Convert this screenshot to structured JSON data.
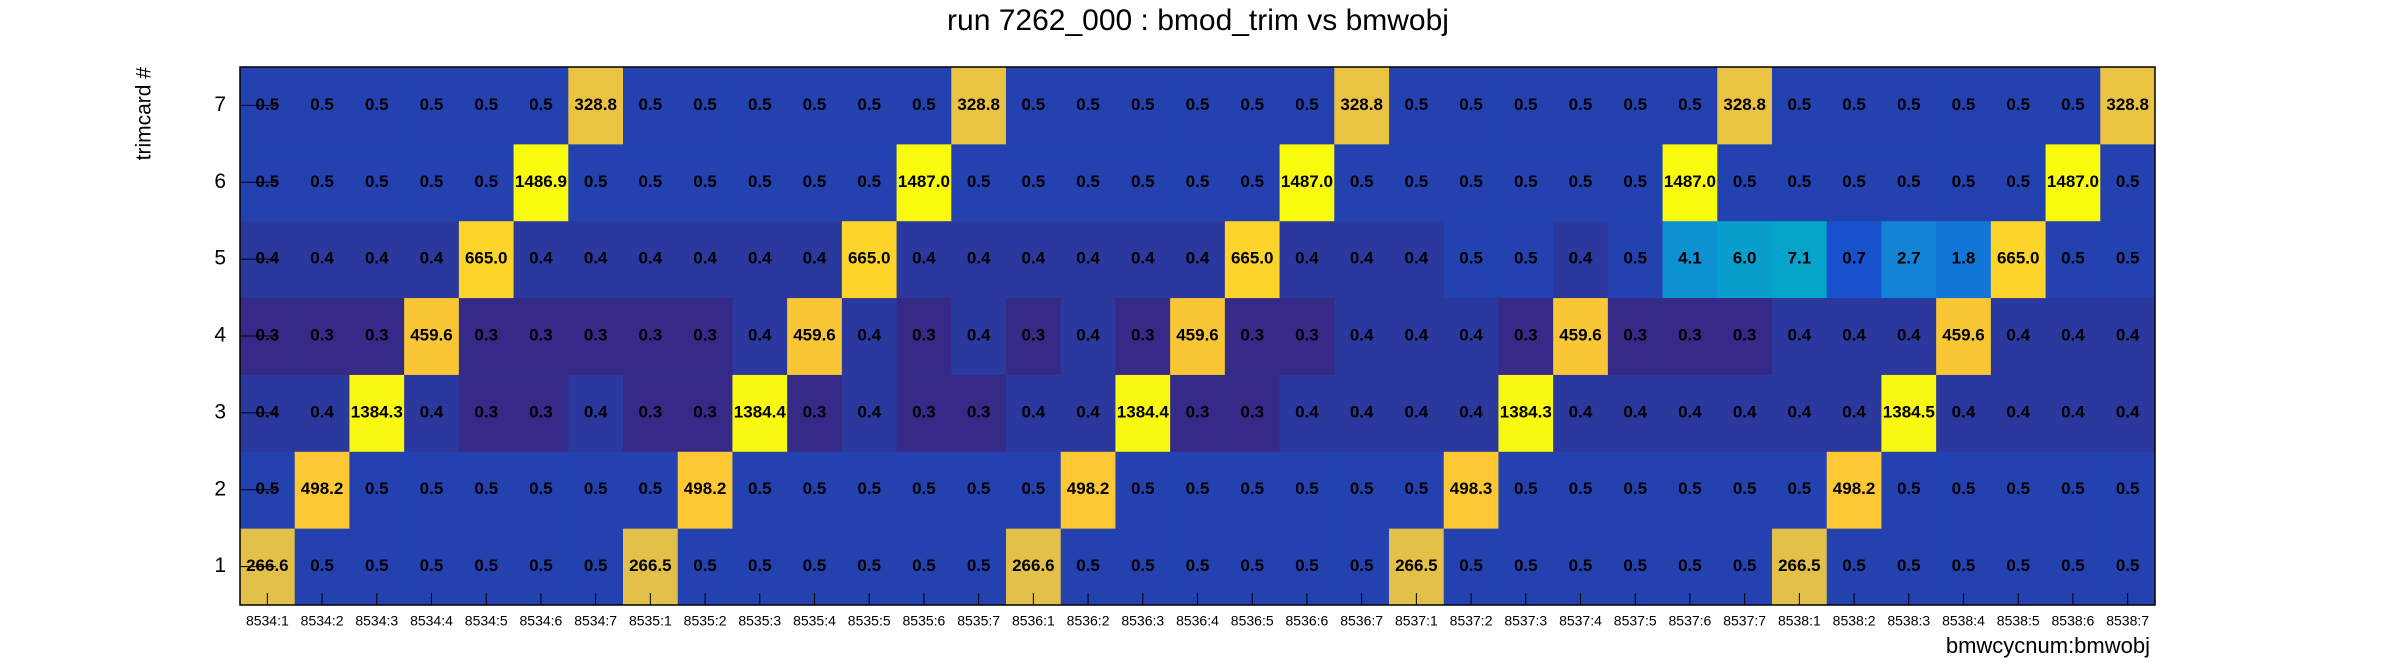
{
  "chart_data": {
    "type": "heatmap",
    "title": "run 7262_000 : bmod_trim vs bmwobj",
    "x_label": "bmwcycnum:bmwobj",
    "y_label": "trimcard #",
    "categories": [
      "8534:1",
      "8534:2",
      "8534:3",
      "8534:4",
      "8534:5",
      "8534:6",
      "8534:7",
      "8535:1",
      "8535:2",
      "8535:3",
      "8535:4",
      "8535:5",
      "8535:6",
      "8535:7",
      "8536:1",
      "8536:2",
      "8536:3",
      "8536:4",
      "8536:5",
      "8536:6",
      "8536:7",
      "8537:1",
      "8537:2",
      "8537:3",
      "8537:4",
      "8537:5",
      "8537:6",
      "8537:7",
      "8538:1",
      "8538:2",
      "8538:3",
      "8538:4",
      "8538:5",
      "8538:6",
      "8538:7"
    ],
    "y": [
      1,
      2,
      3,
      4,
      5,
      6,
      7
    ],
    "zscale": "log",
    "palette": [
      "#352a87",
      "#0f5cdd",
      "#1481d6",
      "#06a4ca",
      "#2eb7a4",
      "#87bf77",
      "#d1bb59",
      "#fec832",
      "#f9fb0e"
    ],
    "values": [
      [
        266.6,
        0.5,
        0.5,
        0.5,
        0.5,
        0.5,
        0.5,
        266.5,
        0.5,
        0.5,
        0.5,
        0.5,
        0.5,
        0.5,
        266.6,
        0.5,
        0.5,
        0.5,
        0.5,
        0.5,
        0.5,
        266.5,
        0.5,
        0.5,
        0.5,
        0.5,
        0.5,
        0.5,
        266.5,
        0.5,
        0.5,
        0.5,
        0.5,
        0.5,
        0.5
      ],
      [
        0.5,
        498.2,
        0.5,
        0.5,
        0.5,
        0.5,
        0.5,
        0.5,
        498.2,
        0.5,
        0.5,
        0.5,
        0.5,
        0.5,
        0.5,
        498.2,
        0.5,
        0.5,
        0.5,
        0.5,
        0.5,
        0.5,
        498.3,
        0.5,
        0.5,
        0.5,
        0.5,
        0.5,
        0.5,
        498.2,
        0.5,
        0.5,
        0.5,
        0.5,
        0.5
      ],
      [
        0.4,
        0.4,
        1384.3,
        0.4,
        0.3,
        0.3,
        0.4,
        0.3,
        0.3,
        1384.4,
        0.3,
        0.4,
        0.3,
        0.3,
        0.4,
        0.4,
        1384.4,
        0.3,
        0.3,
        0.4,
        0.4,
        0.4,
        0.4,
        1384.3,
        0.4,
        0.4,
        0.4,
        0.4,
        0.4,
        0.4,
        1384.5,
        0.4,
        0.4,
        0.4,
        0.4
      ],
      [
        0.3,
        0.3,
        0.3,
        459.6,
        0.3,
        0.3,
        0.3,
        0.3,
        0.3,
        0.4,
        459.6,
        0.4,
        0.3,
        0.4,
        0.3,
        0.4,
        0.3,
        459.6,
        0.3,
        0.3,
        0.4,
        0.4,
        0.4,
        0.3,
        459.6,
        0.3,
        0.3,
        0.3,
        0.4,
        0.4,
        0.4,
        459.6,
        0.4,
        0.4,
        0.4
      ],
      [
        0.4,
        0.4,
        0.4,
        0.4,
        665.0,
        0.4,
        0.4,
        0.4,
        0.4,
        0.4,
        0.4,
        665.0,
        0.4,
        0.4,
        0.4,
        0.4,
        0.4,
        0.4,
        665.0,
        0.4,
        0.4,
        0.4,
        0.5,
        0.5,
        0.4,
        0.5,
        4.1,
        6.0,
        7.1,
        0.7,
        2.7,
        1.8,
        665.0,
        0.5,
        0.5
      ],
      [
        0.5,
        0.5,
        0.5,
        0.5,
        0.5,
        1486.9,
        0.5,
        0.5,
        0.5,
        0.5,
        0.5,
        0.5,
        1487.0,
        0.5,
        0.5,
        0.5,
        0.5,
        0.5,
        0.5,
        1487.0,
        0.5,
        0.5,
        0.5,
        0.5,
        0.5,
        0.5,
        1487.0,
        0.5,
        0.5,
        0.5,
        0.5,
        0.5,
        0.5,
        1487.0,
        0.5
      ],
      [
        0.5,
        0.5,
        0.5,
        0.5,
        0.5,
        0.5,
        328.8,
        0.5,
        0.5,
        0.5,
        0.5,
        0.5,
        0.5,
        328.8,
        0.5,
        0.5,
        0.5,
        0.5,
        0.5,
        0.5,
        328.8,
        0.5,
        0.5,
        0.5,
        0.5,
        0.5,
        0.5,
        328.8,
        0.5,
        0.5,
        0.5,
        0.5,
        0.5,
        0.5,
        328.8
      ]
    ],
    "value_labels": [
      [
        "266.6",
        "0.5",
        "0.5",
        "0.5",
        "0.5",
        "0.5",
        "0.5",
        "266.5",
        "0.5",
        "0.5",
        "0.5",
        "0.5",
        "0.5",
        "0.5",
        "266.6",
        "0.5",
        "0.5",
        "0.5",
        "0.5",
        "0.5",
        "0.5",
        "266.5",
        "0.5",
        "0.5",
        "0.5",
        "0.5",
        "0.5",
        "0.5",
        "266.5",
        "0.5",
        "0.5",
        "0.5",
        "0.5",
        "0.5",
        "0.5"
      ],
      [
        "0.5",
        "498.2",
        "0.5",
        "0.5",
        "0.5",
        "0.5",
        "0.5",
        "0.5",
        "498.2",
        "0.5",
        "0.5",
        "0.5",
        "0.5",
        "0.5",
        "0.5",
        "498.2",
        "0.5",
        "0.5",
        "0.5",
        "0.5",
        "0.5",
        "0.5",
        "498.3",
        "0.5",
        "0.5",
        "0.5",
        "0.5",
        "0.5",
        "0.5",
        "498.2",
        "0.5",
        "0.5",
        "0.5",
        "0.5",
        "0.5"
      ],
      [
        "0.4",
        "0.4",
        "1384.3",
        "0.4",
        "0.3",
        "0.3",
        "0.4",
        "0.3",
        "0.3",
        "1384.4",
        "0.3",
        "0.4",
        "0.3",
        "0.3",
        "0.4",
        "0.4",
        "1384.4",
        "0.3",
        "0.3",
        "0.4",
        "0.4",
        "0.4",
        "0.4",
        "1384.3",
        "0.4",
        "0.4",
        "0.4",
        "0.4",
        "0.4",
        "0.4",
        "1384.5",
        "0.4",
        "0.4",
        "0.4",
        "0.4"
      ],
      [
        "0.3",
        "0.3",
        "0.3",
        "459.6",
        "0.3",
        "0.3",
        "0.3",
        "0.3",
        "0.3",
        "0.4",
        "459.6",
        "0.4",
        "0.3",
        "0.4",
        "0.3",
        "0.4",
        "0.3",
        "459.6",
        "0.3",
        "0.3",
        "0.4",
        "0.4",
        "0.4",
        "0.3",
        "459.6",
        "0.3",
        "0.3",
        "0.3",
        "0.4",
        "0.4",
        "0.4",
        "459.6",
        "0.4",
        "0.4",
        "0.4"
      ],
      [
        "0.4",
        "0.4",
        "0.4",
        "0.4",
        "665.0",
        "0.4",
        "0.4",
        "0.4",
        "0.4",
        "0.4",
        "0.4",
        "665.0",
        "0.4",
        "0.4",
        "0.4",
        "0.4",
        "0.4",
        "0.4",
        "665.0",
        "0.4",
        "0.4",
        "0.4",
        "0.5",
        "0.5",
        "0.4",
        "0.5",
        "4.1",
        "6.0",
        "7.1",
        "0.7",
        "2.7",
        "1.8",
        "665.0",
        "0.5",
        "0.5"
      ],
      [
        "0.5",
        "0.5",
        "0.5",
        "0.5",
        "0.5",
        "1486.9",
        "0.5",
        "0.5",
        "0.5",
        "0.5",
        "0.5",
        "0.5",
        "1487.0",
        "0.5",
        "0.5",
        "0.5",
        "0.5",
        "0.5",
        "0.5",
        "1487.0",
        "0.5",
        "0.5",
        "0.5",
        "0.5",
        "0.5",
        "0.5",
        "1487.0",
        "0.5",
        "0.5",
        "0.5",
        "0.5",
        "0.5",
        "0.5",
        "1487.0",
        "0.5"
      ],
      [
        "0.5",
        "0.5",
        "0.5",
        "0.5",
        "0.5",
        "0.5",
        "328.8",
        "0.5",
        "0.5",
        "0.5",
        "0.5",
        "0.5",
        "0.5",
        "328.8",
        "0.5",
        "0.5",
        "0.5",
        "0.5",
        "0.5",
        "0.5",
        "328.8",
        "0.5",
        "0.5",
        "0.5",
        "0.5",
        "0.5",
        "0.5",
        "328.8",
        "0.5",
        "0.5",
        "0.5",
        "0.5",
        "0.5",
        "0.5",
        "328.8"
      ]
    ]
  }
}
